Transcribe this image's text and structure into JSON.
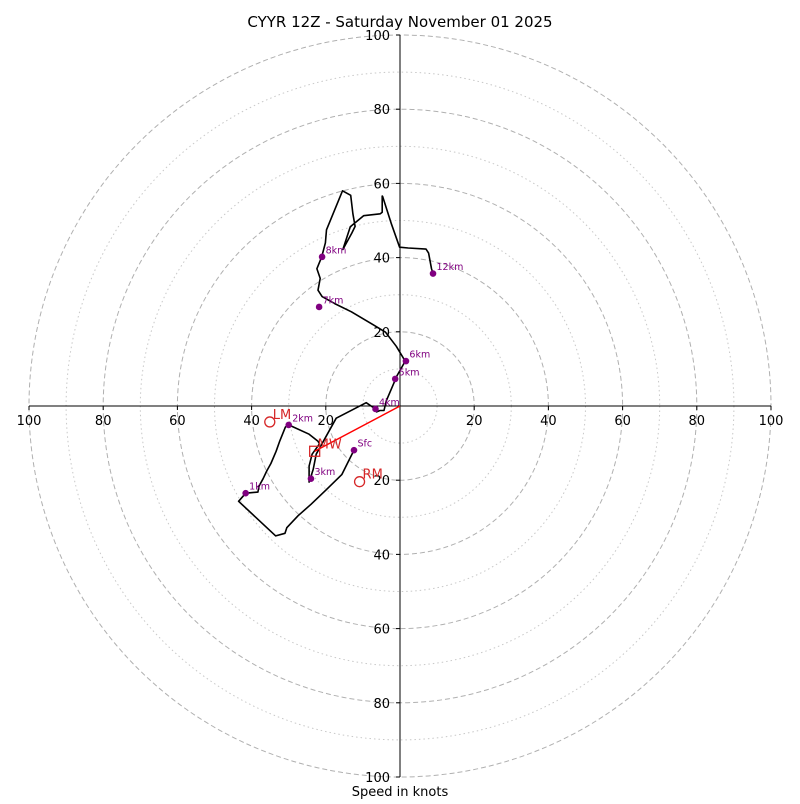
{
  "chart_data": {
    "type": "hodograph",
    "title": "CYYR 12Z - Saturday November 01 2025",
    "xlabel": "Speed in knots",
    "units": "knots",
    "range": [
      -100,
      100
    ],
    "major_rings": [
      20,
      40,
      60,
      80,
      100
    ],
    "minor_rings": [
      10,
      30,
      50,
      70,
      90
    ],
    "x_ticks": [
      {
        "value": -100,
        "label": "100"
      },
      {
        "value": -80,
        "label": "80"
      },
      {
        "value": -60,
        "label": "60"
      },
      {
        "value": -40,
        "label": "40"
      },
      {
        "value": -20,
        "label": "20"
      },
      {
        "value": 20,
        "label": "20"
      },
      {
        "value": 40,
        "label": "40"
      },
      {
        "value": 60,
        "label": "60"
      },
      {
        "value": 80,
        "label": "80"
      },
      {
        "value": 100,
        "label": "100"
      }
    ],
    "y_ticks": [
      {
        "value": 100,
        "label": "100"
      },
      {
        "value": 80,
        "label": "80"
      },
      {
        "value": 60,
        "label": "60"
      },
      {
        "value": 40,
        "label": "40"
      },
      {
        "value": 20,
        "label": "20"
      },
      {
        "value": -20,
        "label": "20"
      },
      {
        "value": -40,
        "label": "40"
      },
      {
        "value": -60,
        "label": "60"
      },
      {
        "value": -80,
        "label": "80"
      },
      {
        "value": -100,
        "label": "100"
      }
    ],
    "trace": [
      [
        -12.4,
        -11.9
      ],
      [
        -15.7,
        -18.5
      ],
      [
        -20.0,
        -22.7
      ],
      [
        -24.0,
        -26.5
      ],
      [
        -27.5,
        -29.6
      ],
      [
        -30.5,
        -32.8
      ],
      [
        -31.0,
        -34.3
      ],
      [
        -33.5,
        -35.0
      ],
      [
        -43.5,
        -25.7
      ],
      [
        -41.6,
        -23.5
      ],
      [
        -38.3,
        -23.2
      ],
      [
        -38.0,
        -21.6
      ],
      [
        -36.9,
        -19.6
      ],
      [
        -35.9,
        -17.5
      ],
      [
        -34.8,
        -15.5
      ],
      [
        -33.4,
        -12.2
      ],
      [
        -32.4,
        -9.4
      ],
      [
        -30.9,
        -5.7
      ],
      [
        -30.0,
        -5.1
      ],
      [
        -24.5,
        -7.6
      ],
      [
        -22.1,
        -9.5
      ],
      [
        -21.7,
        -10.2
      ],
      [
        -23.7,
        -13.0
      ],
      [
        -24.5,
        -16.2
      ],
      [
        -24.5,
        -19.6
      ],
      [
        -24.5,
        -20.5
      ],
      [
        -23.4,
        -17.1
      ],
      [
        -22.6,
        -13.0
      ],
      [
        -17.2,
        -3.3
      ],
      [
        -9.1,
        0.9
      ],
      [
        -6.6,
        -0.8
      ],
      [
        -6.3,
        -1.6
      ],
      [
        -5.4,
        -1.2
      ],
      [
        -4.3,
        -1.2
      ],
      [
        -3.7,
        1.4
      ],
      [
        -1.6,
        6.3
      ],
      [
        -1.3,
        7.3
      ],
      [
        0.3,
        10.1
      ],
      [
        1.4,
        12.1
      ],
      [
        -1.0,
        16.1
      ],
      [
        -3.9,
        19.9
      ],
      [
        -7.2,
        21.9
      ],
      [
        -13.1,
        25.4
      ],
      [
        -17.6,
        27.6
      ],
      [
        -21.0,
        29.5
      ],
      [
        -22.1,
        31.2
      ],
      [
        -21.5,
        34.4
      ],
      [
        -22.4,
        37.0
      ],
      [
        -21.1,
        40.2
      ],
      [
        -20.1,
        44.0
      ],
      [
        -19.8,
        47.5
      ],
      [
        -15.5,
        58.0
      ],
      [
        -13.3,
        56.8
      ],
      [
        -12.7,
        51.8
      ],
      [
        -12.1,
        48.4
      ],
      [
        -13.0,
        46.6
      ],
      [
        -15.4,
        42.2
      ],
      [
        -13.4,
        48.3
      ],
      [
        -9.8,
        51.3
      ],
      [
        -5.3,
        51.8
      ],
      [
        -4.8,
        52.2
      ],
      [
        -4.8,
        56.6
      ],
      [
        -4.7,
        56.5
      ],
      [
        -2.3,
        49.0
      ],
      [
        -0.1,
        42.8
      ],
      [
        2.2,
        42.6
      ],
      [
        7.0,
        42.3
      ],
      [
        7.7,
        41.2
      ],
      [
        8.5,
        37.0
      ],
      [
        8.9,
        35.7
      ]
    ],
    "height_markers": [
      {
        "label": "Sfc",
        "x": -12.4,
        "y": -11.9
      },
      {
        "label": "1km",
        "x": -41.6,
        "y": -23.5
      },
      {
        "label": "2km",
        "x": -30.0,
        "y": -5.1
      },
      {
        "label": "3km",
        "x": -24.0,
        "y": -19.6
      },
      {
        "label": "4km",
        "x": -6.6,
        "y": -0.8
      },
      {
        "label": "5km",
        "x": -1.3,
        "y": 7.3
      },
      {
        "label": "6km",
        "x": 1.6,
        "y": 12.1
      },
      {
        "label": "7km",
        "x": -21.8,
        "y": 26.7
      },
      {
        "label": "8km",
        "x": -21.0,
        "y": 40.2
      },
      {
        "label": "12km",
        "x": 8.9,
        "y": 35.7
      }
    ],
    "storm_motion": {
      "LM": {
        "label": "LM",
        "x": -35.1,
        "y": -4.3
      },
      "MW": {
        "label": "MW",
        "x": -23.0,
        "y": -12.2
      },
      "RM": {
        "label": "RM",
        "x": -10.9,
        "y": -20.4
      }
    },
    "shear_vector": {
      "from": [
        0,
        0
      ],
      "to": [
        -23.0,
        -12.2
      ]
    },
    "colors": {
      "trace": "#000000",
      "marker": "#800080",
      "storm": "#d62728",
      "shear": "#ff0000",
      "major_ring": "#b0b0b0",
      "minor_ring": "#c8c8c8",
      "axis": "#000000"
    }
  }
}
